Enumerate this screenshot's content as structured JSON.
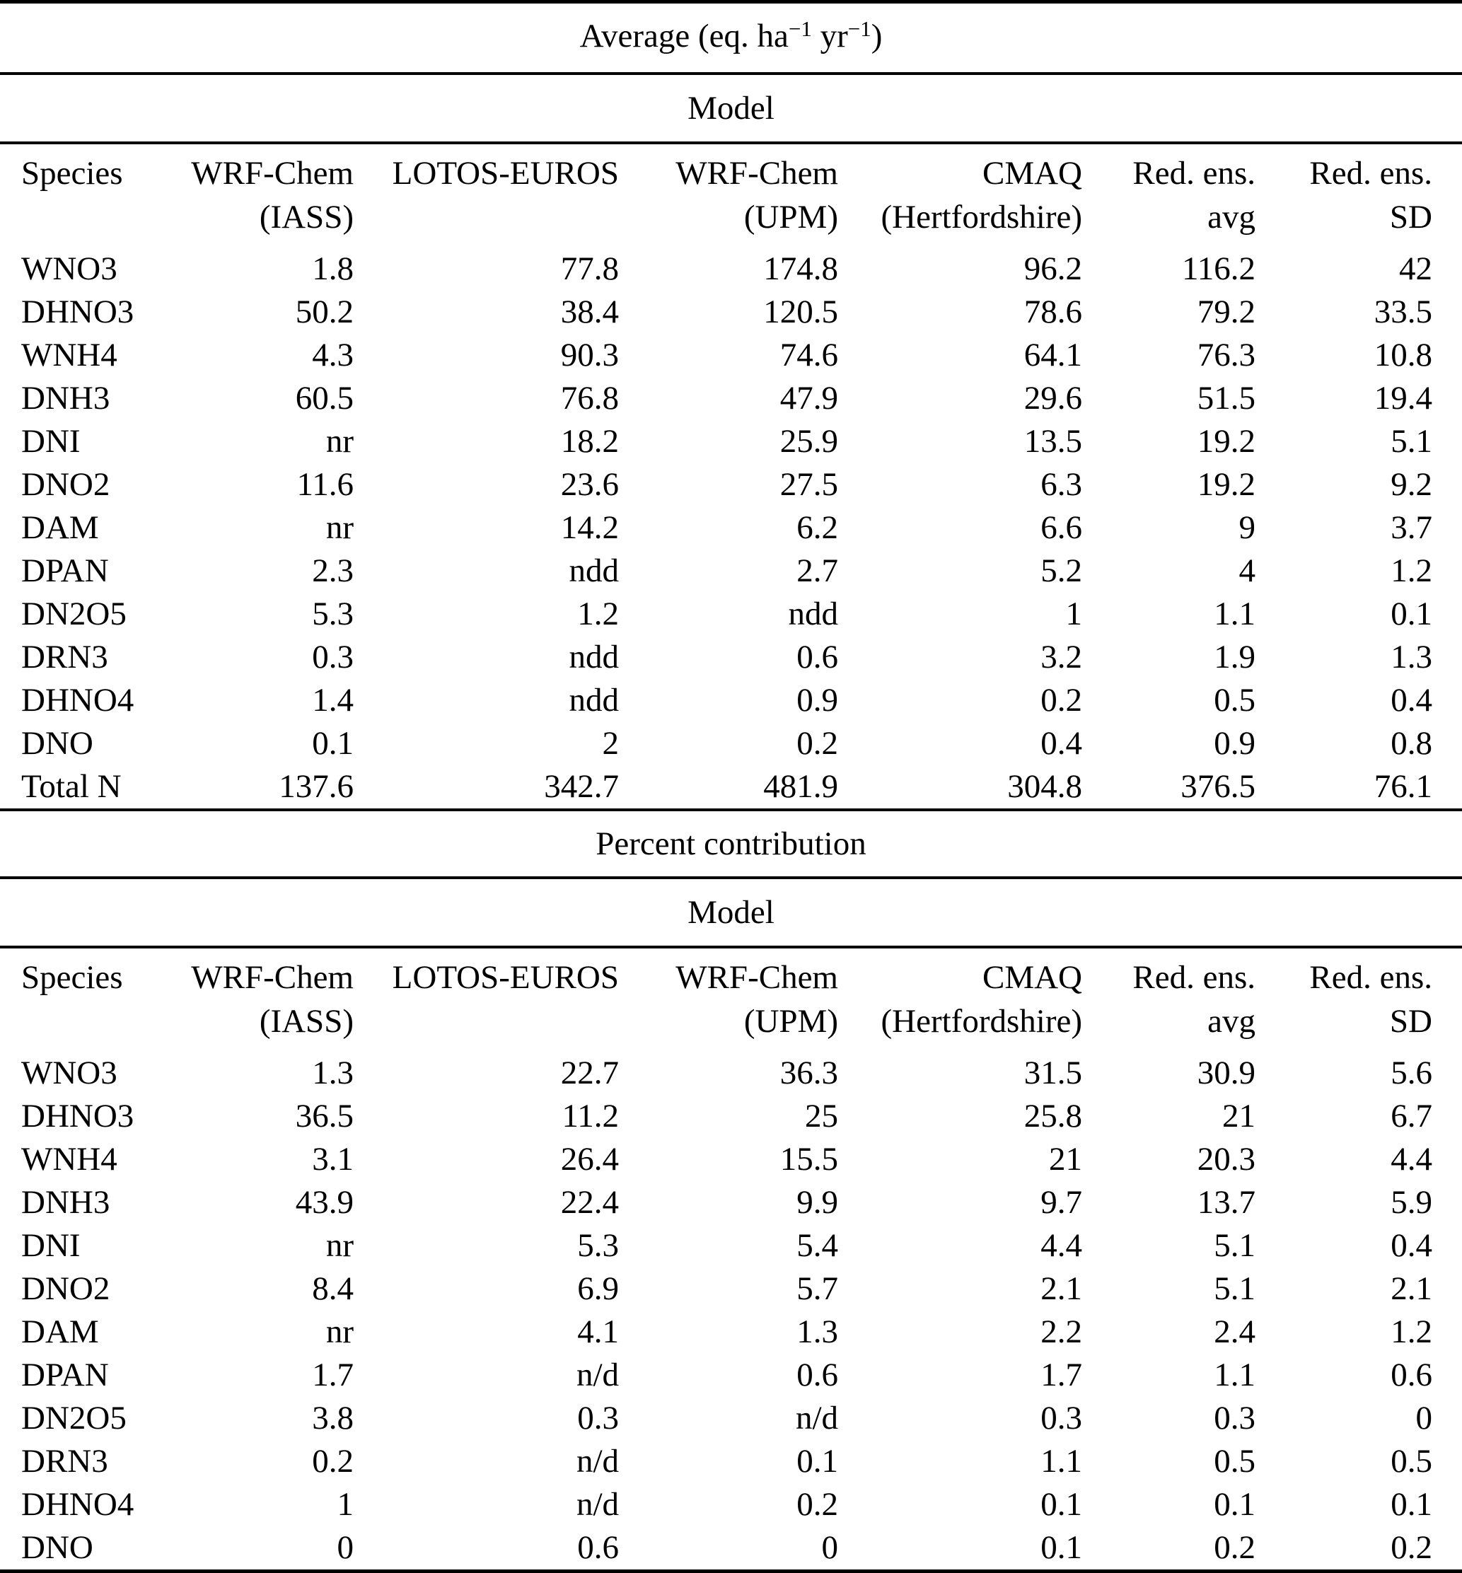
{
  "sections": [
    {
      "title_parts": {
        "t1": "Average (eq. ha",
        "sup1": "−1",
        "t2": " yr",
        "sup2": "−1",
        "t3": ")"
      },
      "group_header": "Model",
      "columns": [
        {
          "line1": "Species",
          "line2": ""
        },
        {
          "line1": "WRF-Chem",
          "line2": "(IASS)"
        },
        {
          "line1": "LOTOS-EUROS",
          "line2": ""
        },
        {
          "line1": "WRF-Chem",
          "line2": "(UPM)"
        },
        {
          "line1": "CMAQ",
          "line2": "(Hertfordshire)"
        },
        {
          "line1": "Red. ens.",
          "line2": "avg"
        },
        {
          "line1": "Red. ens.",
          "line2": "SD"
        }
      ],
      "rows": [
        {
          "species": "WNO3",
          "values": [
            "1.8",
            "77.8",
            "174.8",
            "96.2",
            "116.2",
            "42"
          ]
        },
        {
          "species": "DHNO3",
          "values": [
            "50.2",
            "38.4",
            "120.5",
            "78.6",
            "79.2",
            "33.5"
          ]
        },
        {
          "species": "WNH4",
          "values": [
            "4.3",
            "90.3",
            "74.6",
            "64.1",
            "76.3",
            "10.8"
          ]
        },
        {
          "species": "DNH3",
          "values": [
            "60.5",
            "76.8",
            "47.9",
            "29.6",
            "51.5",
            "19.4"
          ]
        },
        {
          "species": "DNI",
          "values": [
            "nr",
            "18.2",
            "25.9",
            "13.5",
            "19.2",
            "5.1"
          ]
        },
        {
          "species": "DNO2",
          "values": [
            "11.6",
            "23.6",
            "27.5",
            "6.3",
            "19.2",
            "9.2"
          ]
        },
        {
          "species": "DAM",
          "values": [
            "nr",
            "14.2",
            "6.2",
            "6.6",
            "9",
            "3.7"
          ]
        },
        {
          "species": "DPAN",
          "values": [
            "2.3",
            "ndd",
            "2.7",
            "5.2",
            "4",
            "1.2"
          ]
        },
        {
          "species": "DN2O5",
          "values": [
            "5.3",
            "1.2",
            "ndd",
            "1",
            "1.1",
            "0.1"
          ]
        },
        {
          "species": "DRN3",
          "values": [
            "0.3",
            "ndd",
            "0.6",
            "3.2",
            "1.9",
            "1.3"
          ]
        },
        {
          "species": "DHNO4",
          "values": [
            "1.4",
            "ndd",
            "0.9",
            "0.2",
            "0.5",
            "0.4"
          ]
        },
        {
          "species": "DNO",
          "values": [
            "0.1",
            "2",
            "0.2",
            "0.4",
            "0.9",
            "0.8"
          ]
        },
        {
          "species": "Total N",
          "values": [
            "137.6",
            "342.7",
            "481.9",
            "304.8",
            "376.5",
            "76.1"
          ]
        }
      ]
    },
    {
      "title": "Percent contribution",
      "group_header": "Model",
      "columns": [
        {
          "line1": "Species",
          "line2": ""
        },
        {
          "line1": "WRF-Chem",
          "line2": "(IASS)"
        },
        {
          "line1": "LOTOS-EUROS",
          "line2": ""
        },
        {
          "line1": "WRF-Chem",
          "line2": "(UPM)"
        },
        {
          "line1": "CMAQ",
          "line2": "(Hertfordshire)"
        },
        {
          "line1": "Red. ens.",
          "line2": "avg"
        },
        {
          "line1": "Red. ens.",
          "line2": "SD"
        }
      ],
      "rows": [
        {
          "species": "WNO3",
          "values": [
            "1.3",
            "22.7",
            "36.3",
            "31.5",
            "30.9",
            "5.6"
          ]
        },
        {
          "species": "DHNO3",
          "values": [
            "36.5",
            "11.2",
            "25",
            "25.8",
            "21",
            "6.7"
          ]
        },
        {
          "species": "WNH4",
          "values": [
            "3.1",
            "26.4",
            "15.5",
            "21",
            "20.3",
            "4.4"
          ]
        },
        {
          "species": "DNH3",
          "values": [
            "43.9",
            "22.4",
            "9.9",
            "9.7",
            "13.7",
            "5.9"
          ]
        },
        {
          "species": "DNI",
          "values": [
            "nr",
            "5.3",
            "5.4",
            "4.4",
            "5.1",
            "0.4"
          ]
        },
        {
          "species": "DNO2",
          "values": [
            "8.4",
            "6.9",
            "5.7",
            "2.1",
            "5.1",
            "2.1"
          ]
        },
        {
          "species": "DAM",
          "values": [
            "nr",
            "4.1",
            "1.3",
            "2.2",
            "2.4",
            "1.2"
          ]
        },
        {
          "species": "DPAN",
          "values": [
            "1.7",
            "n/d",
            "0.6",
            "1.7",
            "1.1",
            "0.6"
          ]
        },
        {
          "species": "DN2O5",
          "values": [
            "3.8",
            "0.3",
            "n/d",
            "0.3",
            "0.3",
            "0"
          ]
        },
        {
          "species": "DRN3",
          "values": [
            "0.2",
            "n/d",
            "0.1",
            "1.1",
            "0.5",
            "0.5"
          ]
        },
        {
          "species": "DHNO4",
          "values": [
            "1",
            "n/d",
            "0.2",
            "0.1",
            "0.1",
            "0.1"
          ]
        },
        {
          "species": "DNO",
          "values": [
            "0",
            "0.6",
            "0",
            "0.1",
            "0.2",
            "0.2"
          ]
        }
      ]
    }
  ]
}
